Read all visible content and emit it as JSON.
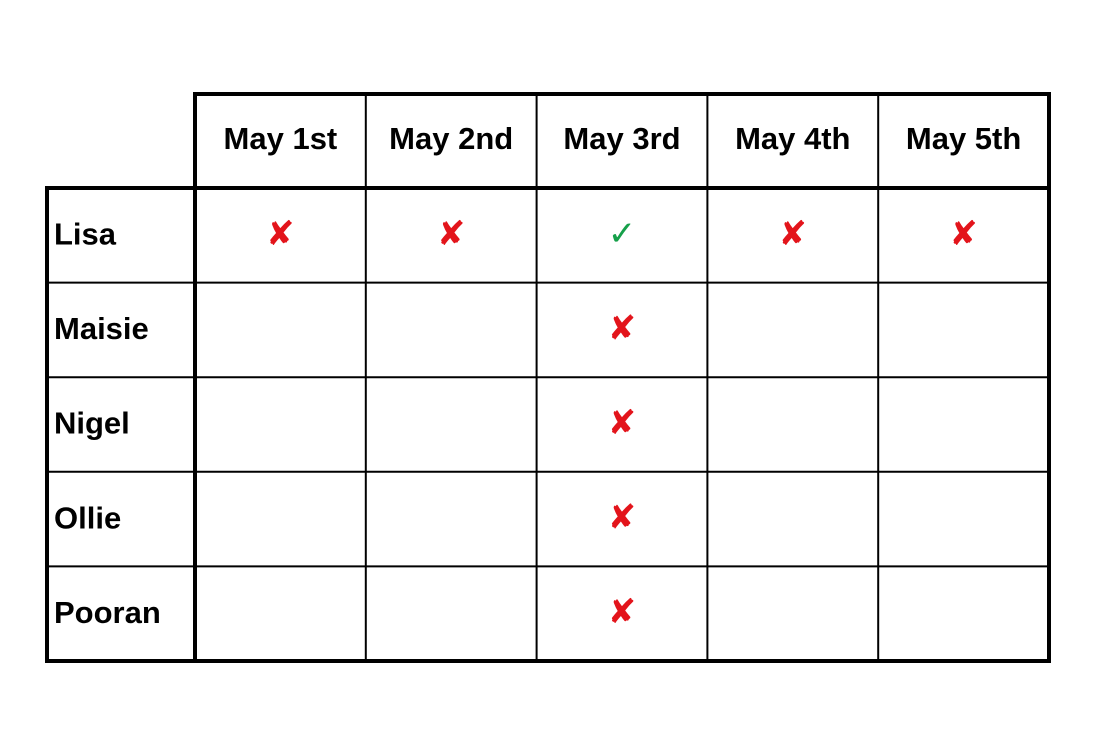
{
  "table": {
    "columns": [
      "May 1st",
      "May 2nd",
      "May 3rd",
      "May 4th",
      "May 5th"
    ],
    "rows": [
      {
        "name": "Lisa",
        "cells": [
          {
            "text": "✘",
            "color": "#e3141b"
          },
          {
            "text": "✘",
            "color": "#e3141b"
          },
          {
            "text": "✓",
            "color": "#16a04a"
          },
          {
            "text": "✘",
            "color": "#e3141b"
          },
          {
            "text": "✘",
            "color": "#e3141b"
          }
        ]
      },
      {
        "name": "Maisie",
        "cells": [
          null,
          null,
          {
            "text": "✘",
            "color": "#e3141b"
          },
          null,
          null
        ]
      },
      {
        "name": "Nigel",
        "cells": [
          null,
          null,
          {
            "text": "✘",
            "color": "#e3141b"
          },
          null,
          null
        ]
      },
      {
        "name": "Ollie",
        "cells": [
          null,
          null,
          {
            "text": "✘",
            "color": "#e3141b"
          },
          null,
          null
        ]
      },
      {
        "name": "Pooran",
        "cells": [
          null,
          null,
          {
            "text": "✘",
            "color": "#e3141b"
          },
          null,
          null
        ]
      }
    ]
  }
}
